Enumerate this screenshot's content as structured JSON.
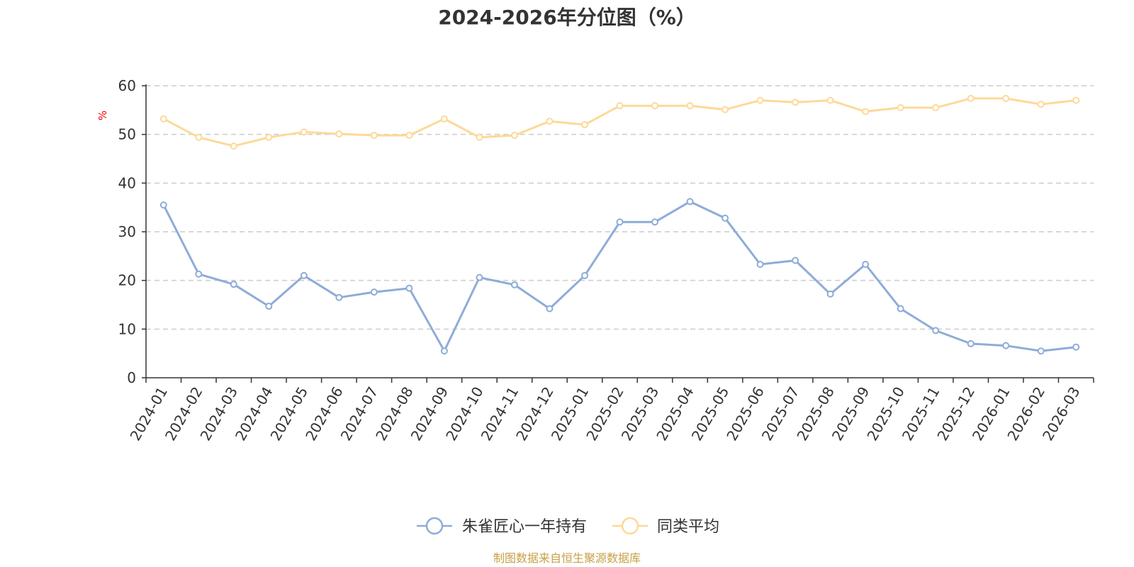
{
  "colors": {
    "series1": "#8eacd8",
    "series2": "#fdd998",
    "axis": "#333333",
    "grid": "#cccccc",
    "unit": "#ff0000",
    "source": "#c7a046"
  },
  "chart_data": {
    "type": "line",
    "title": "2024-2026年分位图（%）",
    "ylabel": "%",
    "xlabel": "",
    "ylim": [
      0,
      60
    ],
    "yticks": [
      0,
      10,
      20,
      30,
      40,
      50,
      60
    ],
    "grid": true,
    "legend_position": "bottom-center",
    "categories": [
      "2024-01",
      "2024-02",
      "2024-03",
      "2024-04",
      "2024-05",
      "2024-06",
      "2024-07",
      "2024-08",
      "2024-09",
      "2024-10",
      "2024-11",
      "2024-12",
      "2025-01",
      "2025-02",
      "2025-03",
      "2025-04",
      "2025-05",
      "2025-06",
      "2025-07",
      "2025-08",
      "2025-09",
      "2025-10",
      "2025-11",
      "2025-12",
      "2026-01",
      "2026-02",
      "2026-03"
    ],
    "series": [
      {
        "name": "朱雀匠心一年持有",
        "color": "#8eacd8",
        "values": [
          35.5,
          21.3,
          19.2,
          14.7,
          21.0,
          16.5,
          17.6,
          18.4,
          5.5,
          20.6,
          19.1,
          14.2,
          21.0,
          32.0,
          32.0,
          36.2,
          32.8,
          23.3,
          24.1,
          17.2,
          23.3,
          14.2,
          9.7,
          7.0,
          6.6,
          5.5,
          6.3
        ]
      },
      {
        "name": "同类平均",
        "color": "#fdd998",
        "values": [
          53.2,
          49.4,
          47.6,
          49.4,
          50.5,
          50.1,
          49.8,
          49.8,
          53.2,
          49.4,
          49.8,
          52.7,
          52.0,
          55.9,
          55.9,
          55.9,
          55.1,
          57.0,
          56.6,
          57.0,
          54.7,
          55.5,
          55.5,
          57.4,
          57.4,
          56.2,
          57.0
        ]
      }
    ]
  },
  "footer": {
    "source": "制图数据来自恒生聚源数据库"
  }
}
